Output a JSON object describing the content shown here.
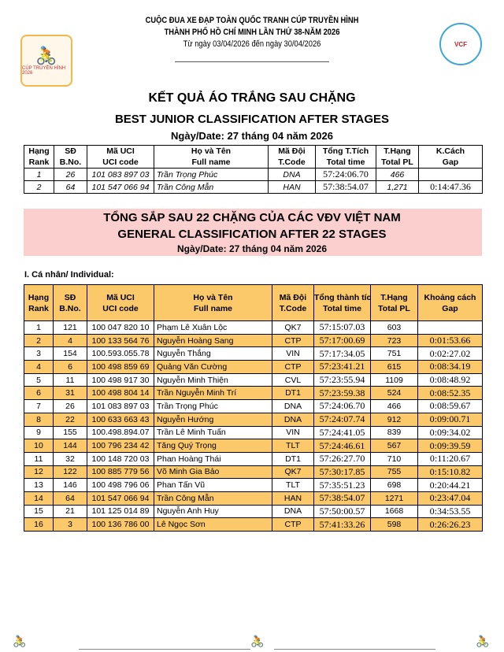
{
  "header": {
    "line1": "CUỘC ĐUA XE ĐẠP TOÀN QUỐC TRANH CÚP TRUYỀN HÌNH",
    "line2": "THÀNH PHỐ HỒ CHÍ MINH LẦN THỨ 38-NĂM 2026",
    "line3": "Từ ngày 03/04/2026 đến ngày 30/04/2026",
    "logo_left": "CÚP TRUYỀN HÌNH 2026 HTV",
    "logo_right": "VCF"
  },
  "junior": {
    "title_vi": "KẾT QUẢ ÁO TRẮNG SAU  CHẶNG",
    "title_en": "BEST JUNIOR CLASSIFICATION AFTER  STAGES",
    "date": "Ngày/Date: 27 tháng 04 năm 2026",
    "columns": [
      [
        "Hạng",
        "Rank"
      ],
      [
        "SĐ",
        "B.No."
      ],
      [
        "Mã UCI",
        "UCI code"
      ],
      [
        "Họ và Tên",
        "Full name"
      ],
      [
        "Mã Đội",
        "T.Code"
      ],
      [
        "Tổng T.Tích",
        "Total time"
      ],
      [
        "T.Hạng",
        "Total PL"
      ],
      [
        "K.Cách",
        "Gap"
      ]
    ],
    "rows": [
      [
        "1",
        "26",
        "101 083 897 03",
        "Trần Trọng Phúc",
        "DNA",
        "57:24:06.70",
        "466",
        ""
      ],
      [
        "2",
        "64",
        "101 547 066 94",
        "Trần Công Mẫn",
        "HAN",
        "57:38:54.07",
        "1,271",
        "0:14:47.36"
      ]
    ]
  },
  "general": {
    "title_vi": "TỔNG SẮP SAU 22 CHẶNG CỦA CÁC VĐV VIỆT NAM",
    "title_en": "GENERAL CLASSIFICATION AFTER 22 STAGES",
    "date": "Ngày/Date: 27 tháng 04 năm 2026",
    "section": "I. Cá nhân/ Individual:",
    "highlight_color": "#fcc96a",
    "band_color": "#fccfcf",
    "columns": [
      [
        "Hạng",
        "Rank"
      ],
      [
        "SĐ",
        "B.No."
      ],
      [
        "Mã UCI",
        "UCI code"
      ],
      [
        "Họ và Tên",
        "Full name"
      ],
      [
        "Mã Đội",
        "T.Code"
      ],
      [
        "Tổng thành tích",
        "Total time"
      ],
      [
        "T.Hạng",
        "Total PL"
      ],
      [
        "Khoảng cách",
        "Gap"
      ]
    ],
    "rows": [
      [
        "1",
        "121",
        "100 047 820 10",
        "Phạm Lê Xuân Lộc",
        "QK7",
        "57:15:07.03",
        "603",
        ""
      ],
      [
        "2",
        "4",
        "100 133 564 76",
        "Nguyễn Hoàng Sang",
        "CTP",
        "57:17:00.69",
        "723",
        "0:01:53.66"
      ],
      [
        "3",
        "154",
        "100.593.055.78",
        "Nguyễn Thắng",
        "VIN",
        "57:17:34.05",
        "751",
        "0:02:27.02"
      ],
      [
        "4",
        "6",
        "100 498 859 69",
        "Quảng Văn Cường",
        "CTP",
        "57:23:41.21",
        "615",
        "0:08:34.19"
      ],
      [
        "5",
        "11",
        "100 498 917 30",
        "Nguyễn Minh Thiện",
        "CVL",
        "57:23:55.94",
        "1109",
        "0:08:48.92"
      ],
      [
        "6",
        "31",
        "100 498 804 14",
        "Trần Nguyễn Minh Trí",
        "DT1",
        "57:23:59.38",
        "524",
        "0:08:52.35"
      ],
      [
        "7",
        "26",
        "101 083 897 03",
        "Trần Trọng Phúc",
        "DNA",
        "57:24:06.70",
        "466",
        "0:08:59.67"
      ],
      [
        "8",
        "22",
        "100 633 663 43",
        "Nguyễn Hướng",
        "DNA",
        "57:24:07.74",
        "912",
        "0:09:00.71"
      ],
      [
        "9",
        "155",
        "100.498.894.07",
        "Trần Lê Minh Tuấn",
        "VIN",
        "57:24:41.05",
        "839",
        "0:09:34.02"
      ],
      [
        "10",
        "144",
        "100 796 234 42",
        "Tăng Quý Trọng",
        "TLT",
        "57:24:46.61",
        "567",
        "0:09:39.59"
      ],
      [
        "11",
        "32",
        "100 148 720 03",
        "Phan Hoàng Thái",
        "DT1",
        "57:26:27.70",
        "710",
        "0:11:20.67"
      ],
      [
        "12",
        "122",
        "100 885 779 56",
        "Võ Minh Gia Bảo",
        "QK7",
        "57:30:17.85",
        "755",
        "0:15:10.82"
      ],
      [
        "13",
        "146",
        "100 498 796 06",
        "Phan Tấn Vũ",
        "TLT",
        "57:35:51.23",
        "698",
        "0:20:44.21"
      ],
      [
        "14",
        "64",
        "101 547 066 94",
        "Trần Công Mẫn",
        "HAN",
        "57:38:54.07",
        "1271",
        "0:23:47.04"
      ],
      [
        "15",
        "21",
        "101 125 014 89",
        "Nguyễn Anh Huy",
        "DNA",
        "57:50:00.57",
        "1668",
        "0:34:53.55"
      ],
      [
        "16",
        "3",
        "100 136 786 00",
        "Lê Ngọc Sơn",
        "CTP",
        "57:41:33.26",
        "598",
        "0:26:26.23"
      ]
    ]
  }
}
